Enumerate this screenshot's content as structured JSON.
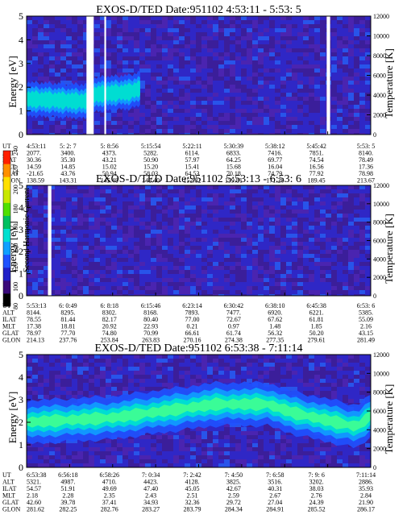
{
  "colorbar": {
    "label": "Second Harmonic Current",
    "ticks": [
      "240",
      "220",
      "200",
      "180",
      "160",
      "140",
      "120",
      "100",
      "80"
    ],
    "range": [
      80,
      240
    ]
  },
  "row_labels": [
    "UT",
    "ALT",
    "ILAT",
    "MLT",
    "GLAT",
    "GLON"
  ],
  "chart_data": [
    {
      "type": "heatmap",
      "title": "EXOS-D/TED   Date:951102   4:53:11 - 5:53: 5",
      "ylabel": "Energy [eV]",
      "ylabel2": "Temperature [K]",
      "ylim": [
        0,
        5
      ],
      "ylim2": [
        0,
        12000
      ],
      "yticks": [
        "0",
        "1",
        "2",
        "3",
        "4",
        "5"
      ],
      "y2ticks": [
        "0",
        "2000",
        "4000",
        "6000",
        "8000",
        "10000",
        "12000"
      ],
      "gaps": [
        [
          0.174,
          0.195
        ],
        [
          0.226,
          0.231
        ],
        [
          0.872,
          0.882
        ]
      ],
      "band": [
        [
          0,
          1.5
        ],
        [
          0.17,
          1.4
        ],
        [
          0.2,
          1.7
        ],
        [
          0.3,
          1.8
        ],
        [
          0.4,
          2.3
        ],
        [
          0.55,
          2.7
        ],
        [
          0.7,
          2.9
        ],
        [
          1.0,
          3.0
        ]
      ],
      "band_strength": 0.75,
      "table": [
        [
          "4:53:11",
          "5: 2: 7",
          "5: 8:56",
          "5:15:54",
          "5:22:11",
          "5:30:39",
          "5:38:12",
          "5:45:42",
          "5:53: 5"
        ],
        [
          "2077.",
          "3400.",
          "4373.",
          "5282.",
          "6114.",
          "6833.",
          "7416.",
          "7851.",
          "8140."
        ],
        [
          "30.36",
          "35.30",
          "43.21",
          "50.90",
          "57.97",
          "64.25",
          "69.77",
          "74.54",
          "78.49"
        ],
        [
          "14.59",
          "14.85",
          "15.02",
          "15.20",
          "15.41",
          "15.68",
          "16.04",
          "16.56",
          "17.36"
        ],
        [
          "-21.65",
          "43.76",
          "50.94",
          "58.03",
          "64.53",
          "70.18",
          "74.79",
          "77.92",
          "78.98"
        ],
        [
          "138.59",
          "143.31",
          "145.48",
          "148.40",
          "152.82",
          "159.81",
          "171.26",
          "189.45",
          "213.67"
        ]
      ]
    },
    {
      "type": "heatmap",
      "title": "EXOS-D/TED   Date:951102   5:53:13 - 6:53: 6",
      "ylabel": "Energy [eV]",
      "ylabel2": "Temperature [K]",
      "ylim": [
        0,
        5
      ],
      "ylim2": [
        0,
        12000
      ],
      "yticks": [
        "0",
        "1",
        "2",
        "3",
        "4",
        "5"
      ],
      "y2ticks": [
        "0",
        "2000",
        "4000",
        "6000",
        "8000",
        "10000",
        "12000"
      ],
      "gaps": [
        [
          0.062,
          0.072
        ]
      ],
      "band": [],
      "band_strength": 0,
      "table": [
        [
          "5:53:13",
          "6: 0:49",
          "6: 8:18",
          "6:15:46",
          "6:23:14",
          "6:30:42",
          "6:38:10",
          "6:45:38",
          "6:53: 6"
        ],
        [
          "8144.",
          "8295.",
          "8302.",
          "8168.",
          "7893.",
          "7477.",
          "6920.",
          "6221.",
          "5385."
        ],
        [
          "78.55",
          "81.44",
          "82.17",
          "80.40",
          "77.00",
          "72.67",
          "67.62",
          "61.81",
          "55.09"
        ],
        [
          "17.38",
          "18.81",
          "20.92",
          "22.93",
          "0.21",
          "0.97",
          "1.48",
          "1.85",
          "2.16"
        ],
        [
          "78.97",
          "77.70",
          "74.80",
          "70.99",
          "66.61",
          "61.74",
          "56.32",
          "50.20",
          "43.15"
        ],
        [
          "214.13",
          "237.76",
          "253.84",
          "263.83",
          "270.16",
          "274.38",
          "277.35",
          "279.61",
          "281.49"
        ]
      ]
    },
    {
      "type": "heatmap",
      "title": "EXOS-D/TED   Date:951102   6:53:38 - 7:11:14",
      "ylabel": "Energy [eV]",
      "ylabel2": "Temperature [K]",
      "ylim": [
        0,
        5
      ],
      "ylim2": [
        0,
        12000
      ],
      "yticks": [
        "0",
        "1",
        "2",
        "3",
        "4",
        "5"
      ],
      "y2ticks": [
        "0",
        "2000",
        "4000",
        "6000",
        "8000",
        "10000",
        "12000"
      ],
      "gaps": [],
      "band": [
        [
          0,
          2.0
        ],
        [
          0.25,
          2.2
        ],
        [
          0.45,
          2.6
        ],
        [
          0.55,
          2.8
        ],
        [
          0.7,
          2.8
        ],
        [
          0.78,
          2.4
        ],
        [
          0.9,
          2.0
        ],
        [
          0.96,
          1.8
        ],
        [
          1.0,
          2.3
        ]
      ],
      "band_strength": 1.0,
      "table": [
        [
          "6:53:38",
          "6:56:18",
          "6:58:26",
          "7: 0:34",
          "7: 2:42",
          "7: 4:50",
          "7: 6:58",
          "7: 9: 6",
          "7:11:14"
        ],
        [
          "5321.",
          "4987.",
          "4710.",
          "4423.",
          "4128.",
          "3825.",
          "3516.",
          "3202.",
          "2886."
        ],
        [
          "54.57",
          "51.91",
          "49.69",
          "47.40",
          "45.05",
          "42.67",
          "40.31",
          "38.03",
          "35.93"
        ],
        [
          "2.18",
          "2.28",
          "2.35",
          "2.43",
          "2.51",
          "2.59",
          "2.67",
          "2.76",
          "2.84"
        ],
        [
          "42.60",
          "39.78",
          "37.41",
          "34.93",
          "32.36",
          "29.72",
          "27.04",
          "24.39",
          "21.90"
        ],
        [
          "281.62",
          "282.25",
          "282.76",
          "283.27",
          "283.79",
          "284.34",
          "284.91",
          "285.52",
          "286.17"
        ]
      ]
    }
  ]
}
